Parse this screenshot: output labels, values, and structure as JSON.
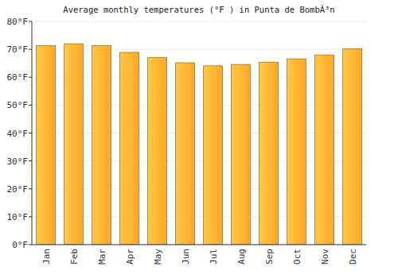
{
  "chart_data": {
    "type": "bar",
    "title": "Average monthly temperatures (°F ) in Punta de BombÃ³n",
    "categories": [
      "Jan",
      "Feb",
      "Mar",
      "Apr",
      "May",
      "Jun",
      "Jul",
      "Aug",
      "Sep",
      "Oct",
      "Nov",
      "Dec"
    ],
    "values": [
      71.3,
      72.0,
      71.3,
      68.9,
      67.1,
      65.2,
      64.1,
      64.6,
      65.4,
      66.6,
      68.0,
      70.2
    ],
    "color": "#ffa726",
    "ylim": [
      0,
      80
    ],
    "yticks": [
      {
        "value": 0,
        "label": "0°F"
      },
      {
        "value": 10,
        "label": "10°F"
      },
      {
        "value": 20,
        "label": "20°F"
      },
      {
        "value": 30,
        "label": "30°F"
      },
      {
        "value": 40,
        "label": "40°F"
      },
      {
        "value": 50,
        "label": "50°F"
      },
      {
        "value": 60,
        "label": "60°F"
      },
      {
        "value": 70,
        "label": "70°F"
      },
      {
        "value": 80,
        "label": "80°F"
      }
    ],
    "grid": true
  }
}
